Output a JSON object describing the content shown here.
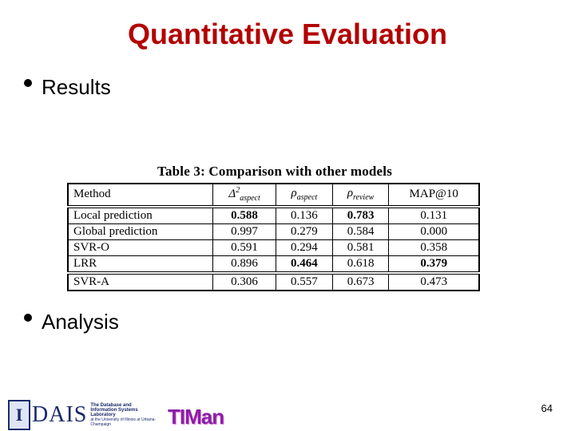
{
  "slide": {
    "title": "Quantitative Evaluation",
    "bullets": [
      "Results",
      "Analysis"
    ],
    "page_number": "64"
  },
  "table": {
    "caption": "Table 3: Comparison with other models",
    "headers": {
      "method": "Method",
      "col1_sym": "Δ",
      "col1_sup": "2",
      "col1_sub": "aspect",
      "col2_sym": "ρ",
      "col2_sub": "aspect",
      "col3_sym": "ρ",
      "col3_sub": "review",
      "col4": "MAP@10"
    },
    "rows": [
      {
        "method": "Local prediction",
        "v1": "0.588",
        "v2": "0.136",
        "v3": "0.783",
        "v4": "0.131"
      },
      {
        "method": "Global prediction",
        "v1": "0.997",
        "v2": "0.279",
        "v3": "0.584",
        "v4": "0.000"
      },
      {
        "method": "SVR-O",
        "v1": "0.591",
        "v2": "0.294",
        "v3": "0.581",
        "v4": "0.358"
      },
      {
        "method": "LRR",
        "v1": "0.896",
        "v2": "0.464",
        "v3": "0.618",
        "v4": "0.379"
      },
      {
        "method": "SVR-A",
        "v1": "0.306",
        "v2": "0.557",
        "v3": "0.673",
        "v4": "0.473"
      }
    ]
  },
  "footer": {
    "dais_mark": "I",
    "dais_text": "DAIS",
    "dais_sub1": "The Database and Information Systems Laboratory",
    "dais_sub2": "at the University of Illinois at Urbana-Champaign",
    "timan_text": "TIMan"
  }
}
